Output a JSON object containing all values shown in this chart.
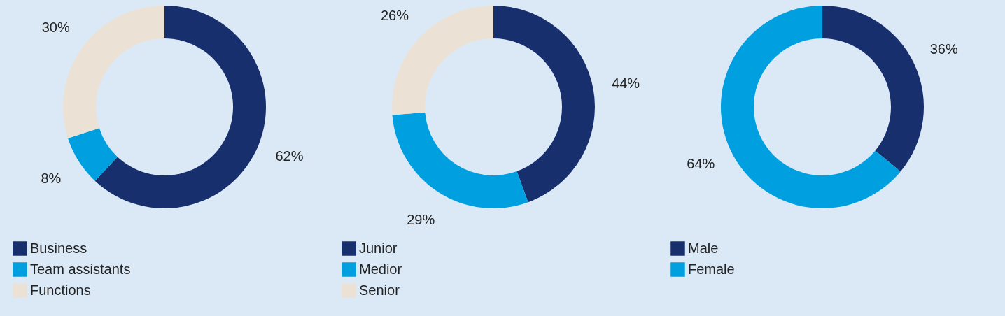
{
  "chart_data": [
    {
      "type": "donut",
      "categories": [
        "Business",
        "Team assistants",
        "Functions"
      ],
      "values": [
        62,
        8,
        30
      ],
      "value_labels": [
        "62%",
        "8%",
        "30%"
      ],
      "colors": [
        "#182f6e",
        "#009fdf",
        "#ebe2d5"
      ],
      "legend": "bottom left"
    },
    {
      "type": "donut",
      "categories": [
        "Junior",
        "Medior",
        "Senior"
      ],
      "values": [
        44,
        29,
        26
      ],
      "value_labels": [
        "44%",
        "29%",
        "26%"
      ],
      "colors": [
        "#182f6e",
        "#009fdf",
        "#ebe2d5"
      ],
      "legend": "bottom left"
    },
    {
      "type": "donut",
      "categories": [
        "Male",
        "Female"
      ],
      "values": [
        36,
        64
      ],
      "value_labels": [
        "36%",
        "64%"
      ],
      "colors": [
        "#182f6e",
        "#009fdf"
      ],
      "legend": "bottom left"
    }
  ]
}
